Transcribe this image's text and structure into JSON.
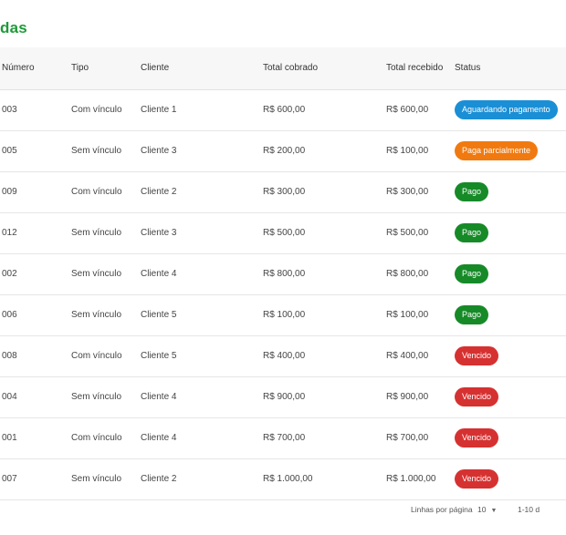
{
  "page": {
    "title": "das"
  },
  "table": {
    "headers": {
      "numero": "Número",
      "tipo": "Tipo",
      "cliente": "Cliente",
      "total_cobrado": "Total cobrado",
      "total_recebido": "Total recebido",
      "status": "Status"
    },
    "rows": [
      {
        "numero": "003",
        "tipo": "Com vínculo",
        "cliente": "Cliente 1",
        "total_cobrado": "R$ 600,00",
        "total_recebido": "R$ 600,00",
        "status": "Aguardando pagamento",
        "status_color": "#1a8fd6"
      },
      {
        "numero": "005",
        "tipo": "Sem vínculo",
        "cliente": "Cliente 3",
        "total_cobrado": "R$ 200,00",
        "total_recebido": "R$ 100,00",
        "status": "Paga parcialmente",
        "status_color": "#f07a10"
      },
      {
        "numero": "009",
        "tipo": "Com vínculo",
        "cliente": "Cliente 2",
        "total_cobrado": "R$ 300,00",
        "total_recebido": "R$ 300,00",
        "status": "Pago",
        "status_color": "#178a28"
      },
      {
        "numero": "012",
        "tipo": "Sem vínculo",
        "cliente": "Cliente 3",
        "total_cobrado": "R$ 500,00",
        "total_recebido": "R$ 500,00",
        "status": "Pago",
        "status_color": "#178a28"
      },
      {
        "numero": "002",
        "tipo": "Sem vínculo",
        "cliente": "Cliente 4",
        "total_cobrado": "R$ 800,00",
        "total_recebido": "R$ 800,00",
        "status": "Pago",
        "status_color": "#178a28"
      },
      {
        "numero": "006",
        "tipo": "Sem vínculo",
        "cliente": "Cliente 5",
        "total_cobrado": "R$ 100,00",
        "total_recebido": "R$ 100,00",
        "status": "Pago",
        "status_color": "#178a28"
      },
      {
        "numero": "008",
        "tipo": "Com vínculo",
        "cliente": "Cliente 5",
        "total_cobrado": "R$ 400,00",
        "total_recebido": "R$ 400,00",
        "status": "Vencido",
        "status_color": "#d63131"
      },
      {
        "numero": "004",
        "tipo": "Sem vínculo",
        "cliente": "Cliente 4",
        "total_cobrado": "R$ 900,00",
        "total_recebido": "R$ 900,00",
        "status": "Vencido",
        "status_color": "#d63131"
      },
      {
        "numero": "001",
        "tipo": "Com vínculo",
        "cliente": "Cliente 4",
        "total_cobrado": "R$ 700,00",
        "total_recebido": "R$ 700,00",
        "status": "Vencido",
        "status_color": "#d63131"
      },
      {
        "numero": "007",
        "tipo": "Sem vínculo",
        "cliente": "Cliente 2",
        "total_cobrado": "R$ 1.000,00",
        "total_recebido": "R$ 1.000,00",
        "status": "Vencido",
        "status_color": "#d63131"
      }
    ]
  },
  "pagination": {
    "rows_per_page_label": "Linhas por página",
    "rows_per_page_value": "10",
    "range": "1-10 d",
    "caret_icon": "triangle-down-icon"
  },
  "colors": {
    "accent": "#1f9a3a"
  }
}
